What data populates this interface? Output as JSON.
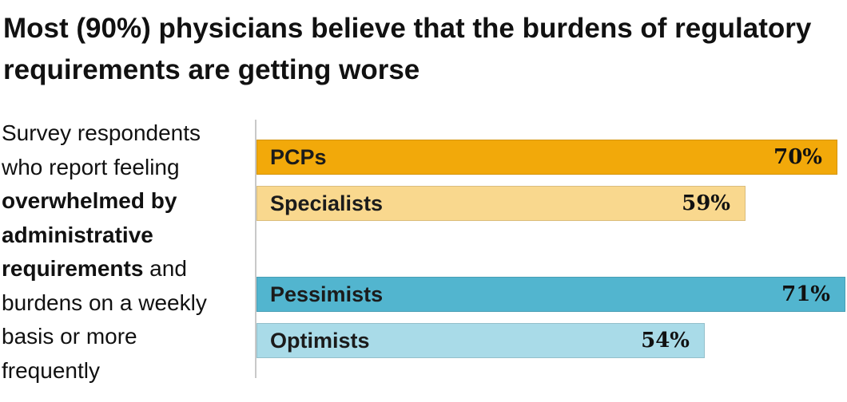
{
  "title": "Most (90%) physicians believe that the burdens of regulatory requirements are getting worse",
  "description": {
    "part1": "Survey respondents who report feeling ",
    "bold": "overwhelmed by administrative requirements",
    "part2": " and burdens on a weekly basis or more frequently"
  },
  "colors": {
    "pcps": "#f2a90a",
    "specialists": "#f9d88e",
    "pessimists": "#52b5cf",
    "optimists": "#a9dbe8"
  },
  "chart_data": {
    "type": "bar",
    "orientation": "horizontal",
    "categories": [
      "PCPs",
      "Specialists",
      "Pessimists",
      "Optimists"
    ],
    "values": [
      70,
      59,
      71,
      54
    ],
    "value_labels": [
      "70%",
      "59%",
      "71%",
      "54%"
    ],
    "unit": "%",
    "groups": [
      [
        "PCPs",
        "Specialists"
      ],
      [
        "Pessimists",
        "Optimists"
      ]
    ],
    "xlim": [
      0,
      71
    ],
    "grid": false,
    "legend": "none"
  }
}
